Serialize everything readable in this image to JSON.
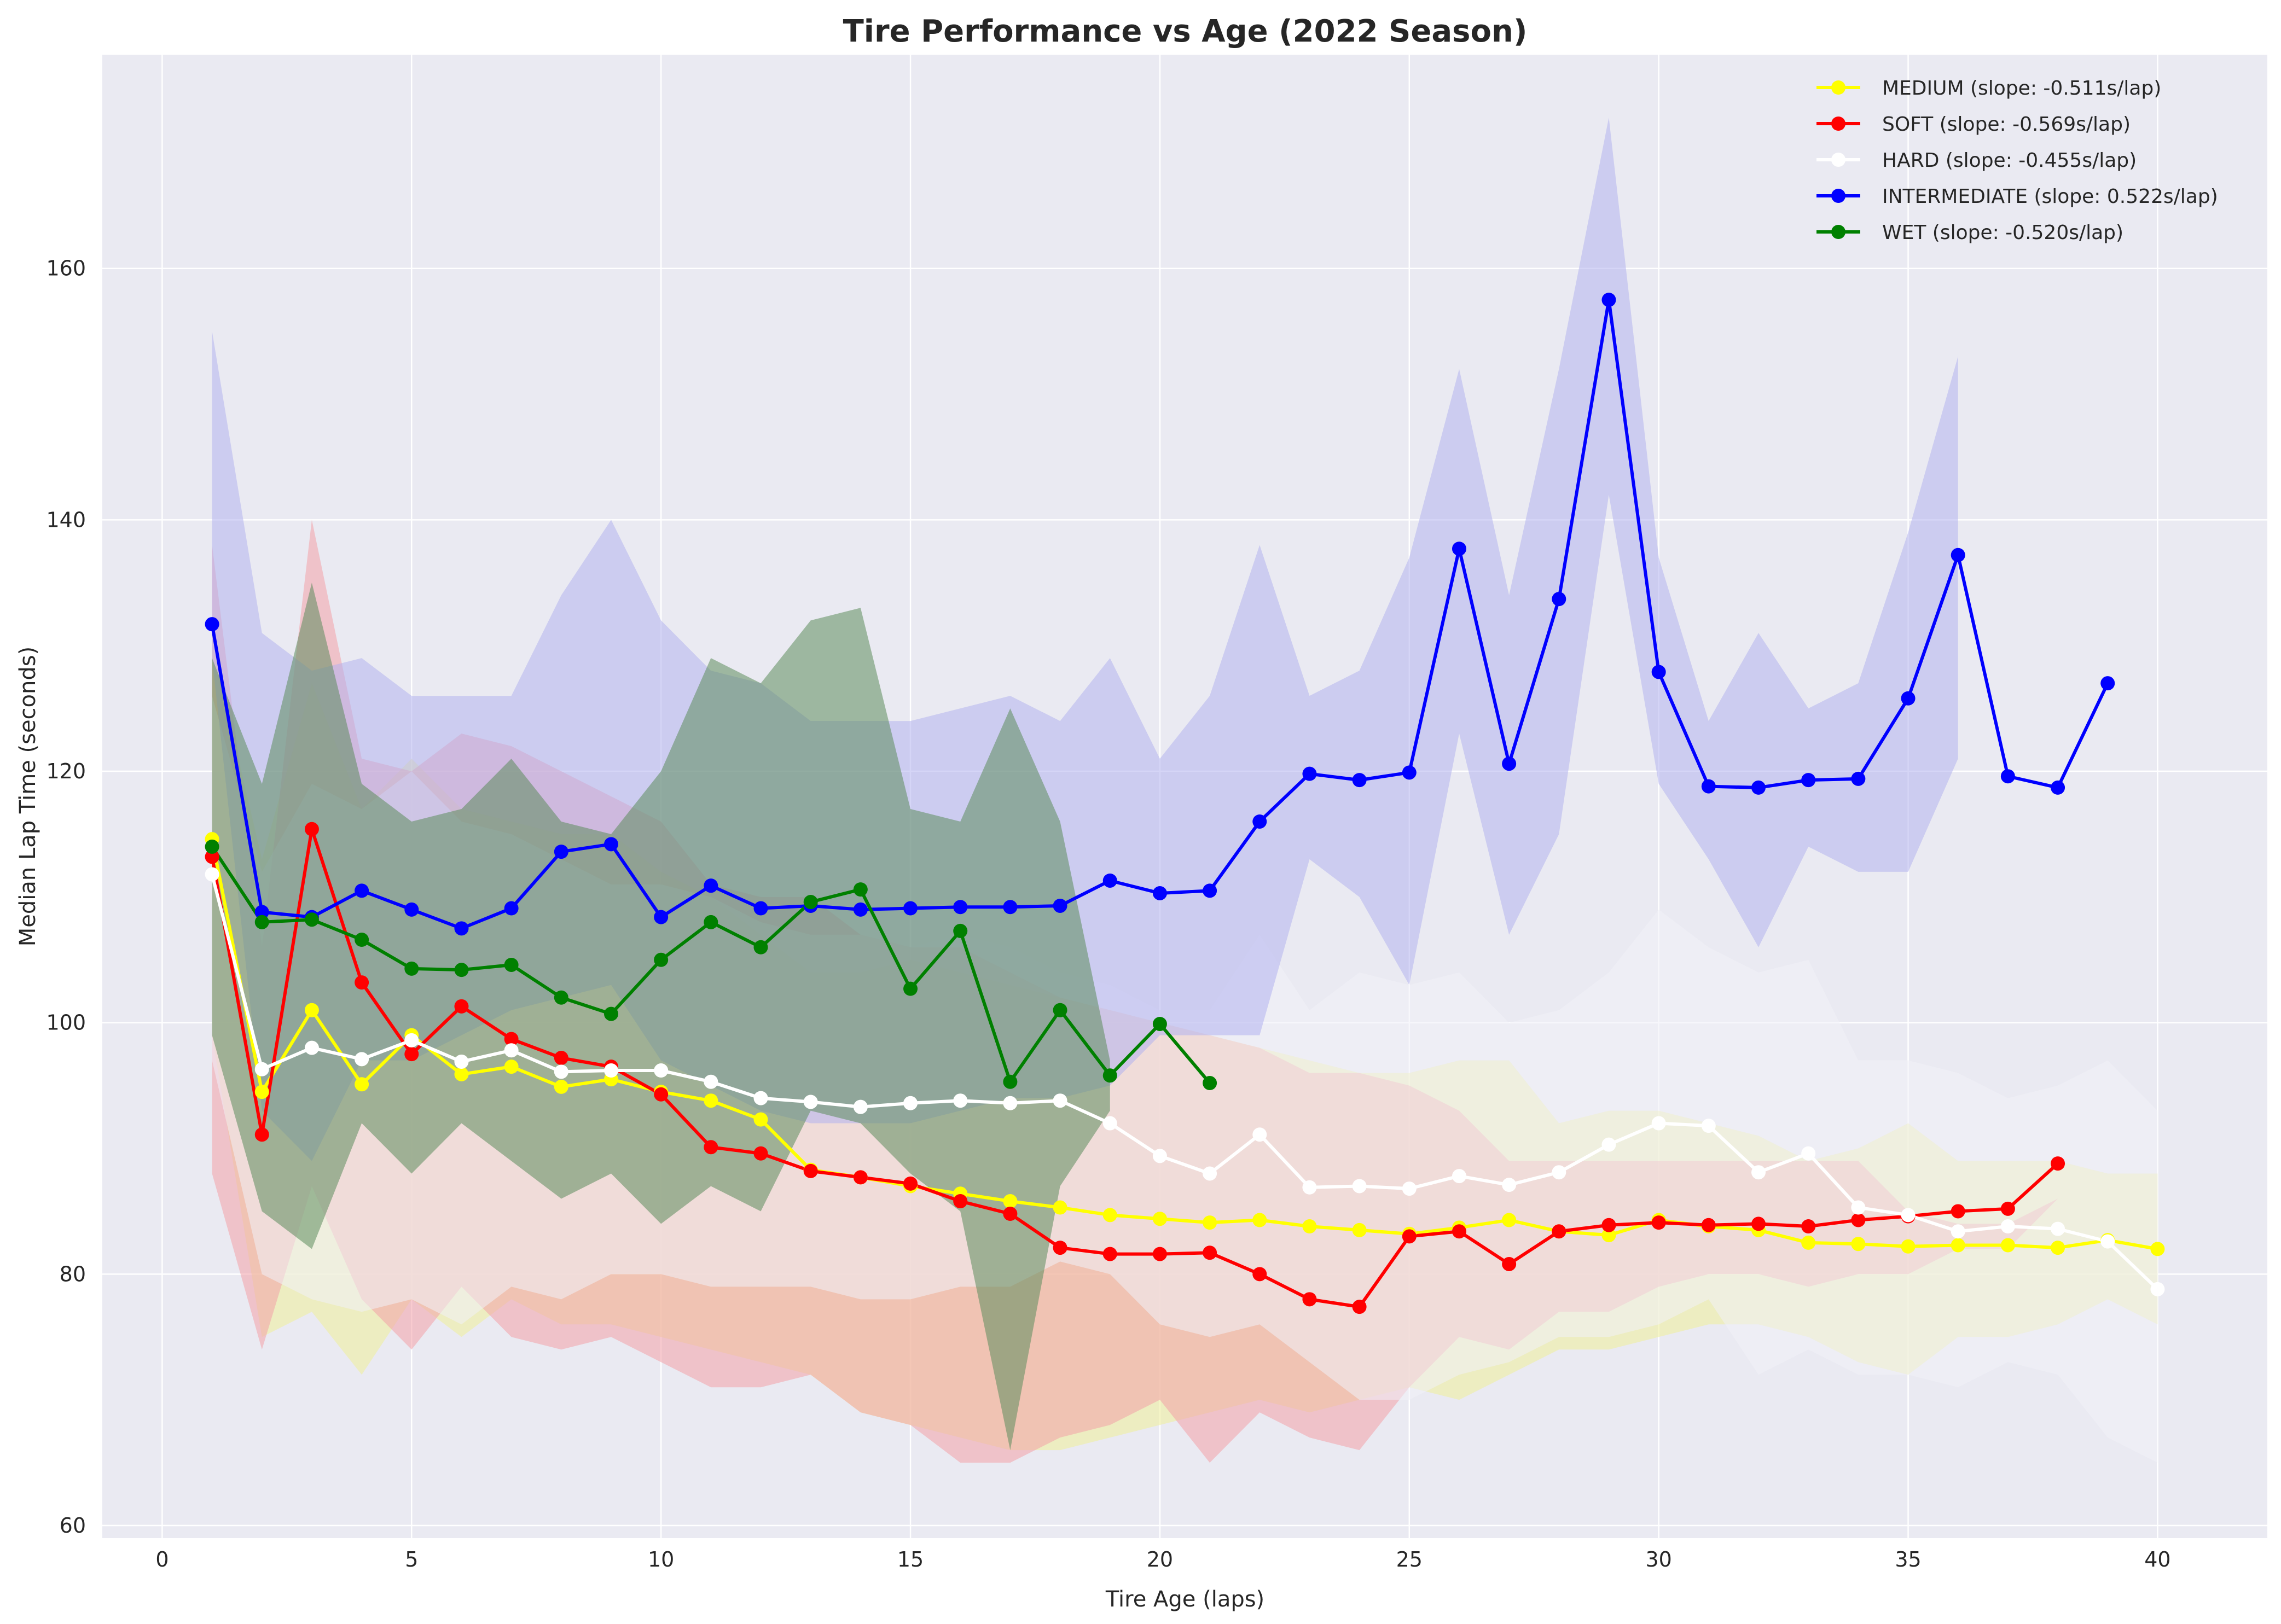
{
  "chart_data": {
    "type": "line",
    "title": "Tire Performance vs Age (2022 Season)",
    "xlabel": "Tire Age (laps)",
    "ylabel": "Median Lap Time (seconds)",
    "xlim": [
      -1.2,
      42.2
    ],
    "ylim": [
      59,
      177
    ],
    "xticks": [
      0,
      5,
      10,
      15,
      20,
      25,
      30,
      35,
      40
    ],
    "yticks": [
      60,
      80,
      100,
      120,
      140,
      160
    ],
    "grid": true,
    "legend_position": "top-right",
    "series": [
      {
        "name": "MEDIUM (slope: -0.511s/lap)",
        "color": "#ffff00",
        "band_color": "#eeee99",
        "x": [
          1,
          2,
          3,
          4,
          5,
          6,
          7,
          8,
          9,
          10,
          11,
          12,
          13,
          14,
          15,
          16,
          17,
          18,
          19,
          20,
          21,
          22,
          23,
          24,
          25,
          26,
          27,
          28,
          29,
          30,
          31,
          32,
          33,
          34,
          35,
          36,
          37,
          38,
          39,
          40
        ],
        "y": [
          114.6,
          94.5,
          101.0,
          95.1,
          99.0,
          95.9,
          96.5,
          94.9,
          95.5,
          94.5,
          93.8,
          92.3,
          88.3,
          87.7,
          87.0,
          86.4,
          85.8,
          85.3,
          84.7,
          84.4,
          84.1,
          84.3,
          83.8,
          83.5,
          83.2,
          83.7,
          84.3,
          83.4,
          83.1,
          84.3,
          83.8,
          83.5,
          82.5,
          82.4,
          82.2,
          82.3,
          82.3,
          82.1,
          82.7,
          82.0
        ],
        "upper": [
          130,
          113,
          127,
          117,
          121,
          117,
          116,
          115,
          115,
          112,
          110,
          107,
          104,
          104,
          105,
          104,
          103,
          102,
          101,
          100,
          99,
          98,
          97,
          96,
          96,
          97,
          97,
          92,
          93,
          93,
          92,
          91,
          89,
          90,
          92,
          89,
          89,
          89,
          88,
          88
        ],
        "lower": [
          99,
          75,
          77,
          72,
          78,
          75,
          78,
          76,
          76,
          75,
          74,
          73,
          72,
          69,
          68,
          67,
          66,
          66,
          67,
          68,
          69,
          70,
          69,
          70,
          71,
          70,
          72,
          74,
          74,
          75,
          76,
          76,
          75,
          73,
          72,
          75,
          75,
          76,
          78,
          76
        ]
      },
      {
        "name": "SOFT (slope: -0.569s/lap)",
        "color": "#ff0000",
        "band_color": "#f2a0a8",
        "x": [
          1,
          2,
          3,
          4,
          5,
          6,
          7,
          8,
          9,
          10,
          11,
          12,
          13,
          14,
          15,
          16,
          17,
          18,
          19,
          20,
          21,
          22,
          23,
          24,
          25,
          26,
          27,
          28,
          29,
          30,
          31,
          32,
          33,
          34,
          35,
          36,
          37,
          38
        ],
        "y": [
          113.2,
          91.1,
          115.4,
          103.2,
          97.5,
          101.3,
          98.7,
          97.2,
          96.5,
          94.3,
          90.1,
          89.6,
          88.2,
          87.7,
          87.2,
          85.8,
          84.8,
          82.1,
          81.6,
          81.6,
          81.7,
          80.0,
          78.0,
          77.4,
          83.0,
          83.4,
          80.8,
          83.4,
          83.9,
          84.1,
          83.9,
          84.0,
          83.8,
          84.3,
          84.6,
          85.0,
          85.2,
          88.8
        ],
        "upper": [
          138,
          106,
          140,
          121,
          120,
          123,
          122,
          120,
          118,
          116,
          111,
          110,
          110,
          107,
          106,
          106,
          104,
          102,
          101,
          100,
          99,
          98,
          96,
          96,
          95,
          93,
          89,
          89,
          89,
          89,
          89,
          89,
          89,
          89,
          85,
          84,
          84,
          86
        ],
        "lower": [
          88,
          74,
          87,
          78,
          74,
          79,
          75,
          74,
          75,
          73,
          71,
          71,
          72,
          69,
          68,
          65,
          65,
          67,
          68,
          70,
          65,
          69,
          67,
          66,
          71,
          75,
          74,
          77,
          77,
          79,
          80,
          80,
          79,
          80,
          80,
          82,
          82,
          86
        ]
      },
      {
        "name": "HARD (slope: -0.455s/lap)",
        "color": "#ffffff",
        "band_color": "#f1f1f7",
        "x": [
          1,
          2,
          3,
          4,
          5,
          6,
          7,
          8,
          9,
          10,
          11,
          12,
          13,
          14,
          15,
          16,
          17,
          18,
          19,
          20,
          21,
          22,
          23,
          24,
          25,
          26,
          27,
          28,
          29,
          30,
          31,
          32,
          33,
          34,
          35,
          36,
          37,
          38,
          39,
          40
        ],
        "y": [
          111.8,
          96.3,
          98.0,
          97.1,
          98.6,
          96.9,
          97.8,
          96.1,
          96.2,
          96.2,
          95.3,
          94.0,
          93.7,
          93.3,
          93.6,
          93.8,
          93.6,
          93.8,
          92.0,
          89.4,
          88.0,
          91.1,
          86.9,
          87.0,
          86.8,
          87.8,
          87.1,
          88.1,
          90.3,
          92.0,
          91.8,
          88.1,
          89.6,
          85.3,
          84.7,
          83.4,
          83.8,
          83.6,
          82.6,
          78.8
        ],
        "upper": [
          126,
          112,
          119,
          117,
          120,
          116,
          115,
          113,
          111,
          111,
          110,
          108,
          107,
          107,
          106,
          107,
          106,
          104,
          103,
          101,
          101,
          107,
          101,
          104,
          103,
          104,
          100,
          101,
          104,
          109,
          106,
          104,
          105,
          97,
          97,
          96,
          94,
          95,
          97,
          93
        ],
        "lower": [
          97,
          80,
          78,
          77,
          78,
          76,
          79,
          78,
          80,
          80,
          79,
          79,
          79,
          78,
          78,
          79,
          79,
          81,
          80,
          76,
          75,
          76,
          73,
          70,
          70,
          72,
          73,
          75,
          75,
          76,
          78,
          72,
          74,
          72,
          72,
          71,
          73,
          72,
          67,
          65
        ]
      },
      {
        "name": "INTERMEDIATE (slope: 0.522s/lap)",
        "color": "#0000ff",
        "band_color": "#b2b2ef",
        "x": [
          1,
          2,
          3,
          4,
          5,
          6,
          7,
          8,
          9,
          10,
          11,
          12,
          13,
          14,
          15,
          16,
          17,
          18,
          19,
          20,
          21,
          22,
          23,
          24,
          25,
          26,
          27,
          28,
          29,
          30,
          31,
          32,
          33,
          34,
          35,
          36,
          37,
          38,
          39
        ],
        "y": [
          131.7,
          108.8,
          108.4,
          110.5,
          109.0,
          107.5,
          109.1,
          113.6,
          114.2,
          108.4,
          110.9,
          109.1,
          109.3,
          109.0,
          109.1,
          109.2,
          109.2,
          109.3,
          111.3,
          110.3,
          110.5,
          116.0,
          119.8,
          119.3,
          119.9,
          137.7,
          120.6,
          133.7,
          157.5,
          127.9,
          118.8,
          118.7,
          119.3,
          119.4,
          125.8,
          137.2,
          119.6,
          118.7,
          127.0
        ],
        "upper": [
          155,
          131,
          128,
          129,
          126,
          126,
          126,
          134,
          140,
          132,
          128,
          127,
          124,
          124,
          124,
          125,
          126,
          124,
          129,
          121,
          126,
          138,
          126,
          128,
          137,
          152,
          134,
          152,
          172,
          137,
          124,
          131,
          125,
          127,
          139,
          153,
          null,
          null,
          null
        ],
        "lower": [
          129,
          93,
          89,
          97,
          97,
          99,
          101,
          102,
          103,
          97,
          95,
          93,
          92,
          92,
          92,
          93,
          94,
          94,
          95,
          99,
          99,
          99,
          113,
          110,
          103,
          123,
          107,
          115,
          142,
          119,
          113,
          106,
          114,
          112,
          112,
          121,
          null,
          null,
          null
        ]
      },
      {
        "name": "WET (slope: -0.520s/lap)",
        "color": "#008000",
        "band_color": "#5c8c5c",
        "x": [
          1,
          2,
          3,
          4,
          5,
          6,
          7,
          8,
          9,
          10,
          11,
          12,
          13,
          14,
          15,
          16,
          17,
          18,
          19,
          20,
          21
        ],
        "y": [
          114.0,
          108.0,
          108.2,
          106.6,
          104.3,
          104.2,
          104.6,
          102.0,
          100.7,
          105.0,
          108.0,
          106.0,
          109.6,
          110.6,
          102.7,
          107.3,
          95.3,
          101.0,
          95.8,
          99.9,
          95.2
        ],
        "upper": [
          129,
          119,
          135,
          119,
          116,
          117,
          121,
          116,
          115,
          120,
          129,
          127,
          132,
          133,
          117,
          116,
          125,
          116,
          97,
          null,
          null
        ],
        "lower": [
          99,
          85,
          82,
          92,
          88,
          92,
          89,
          86,
          88,
          84,
          87,
          85,
          93,
          92,
          88,
          85,
          66,
          87,
          93,
          null,
          null
        ]
      }
    ]
  }
}
